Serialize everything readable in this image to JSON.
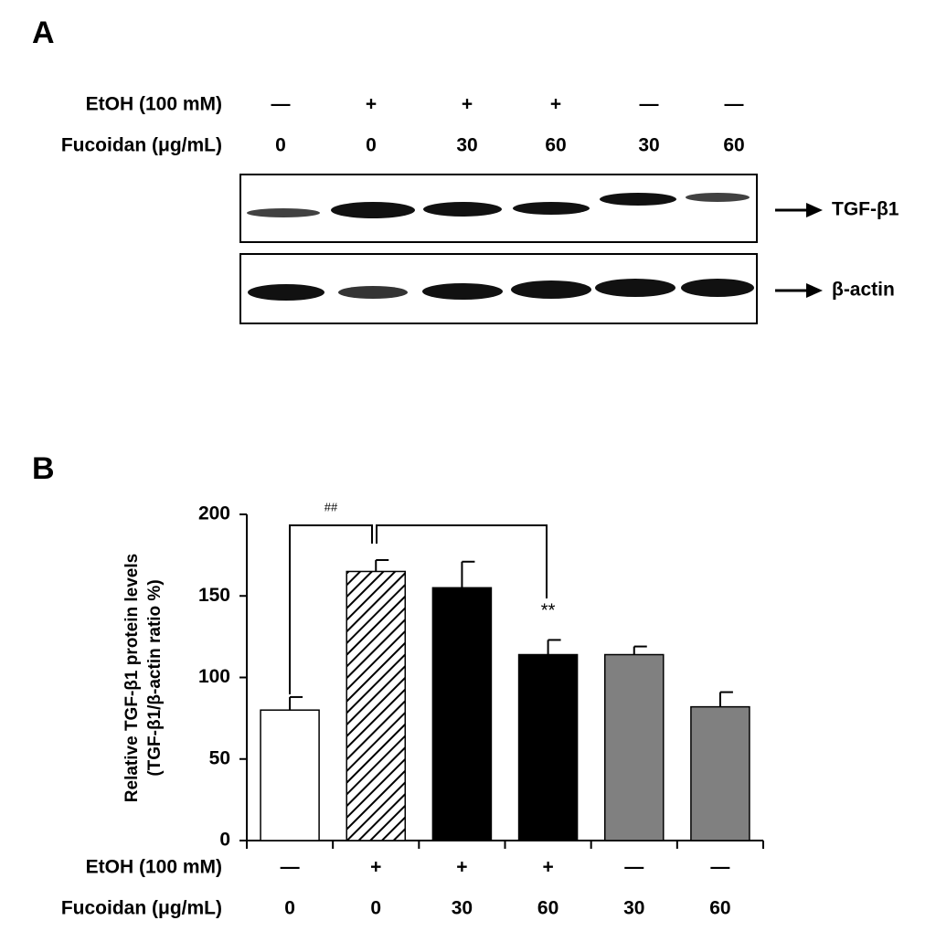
{
  "panel_a": {
    "label": "A",
    "bands": [
      "TGF-β1",
      "β-actin"
    ]
  },
  "chart_data": {
    "type": "bar",
    "label": "B",
    "ylabel": [
      "Relative TGF-β1 protein levels",
      "(TGF-β1/β-actin ratio %)"
    ],
    "row_labels": [
      "EtOH (100 mM)",
      "Fucoidan (μg/mL)"
    ],
    "etoh": [
      "—",
      "+",
      "+",
      "+",
      "—",
      "—"
    ],
    "categories": [
      "0",
      "0",
      "30",
      "60",
      "30",
      "60"
    ],
    "values": [
      80,
      165,
      155,
      114,
      114,
      82
    ],
    "errors": [
      8,
      7,
      16,
      9,
      5,
      9
    ],
    "colors": [
      "#ffffff",
      "#ffffff",
      "#000000",
      "#000000",
      "#808080",
      "#808080"
    ],
    "hatch": [
      false,
      true,
      false,
      false,
      false,
      false
    ],
    "ylim": [
      0,
      200
    ],
    "yticks": [
      0,
      50,
      100,
      150,
      200
    ],
    "annotations": [
      "##",
      "**"
    ]
  }
}
